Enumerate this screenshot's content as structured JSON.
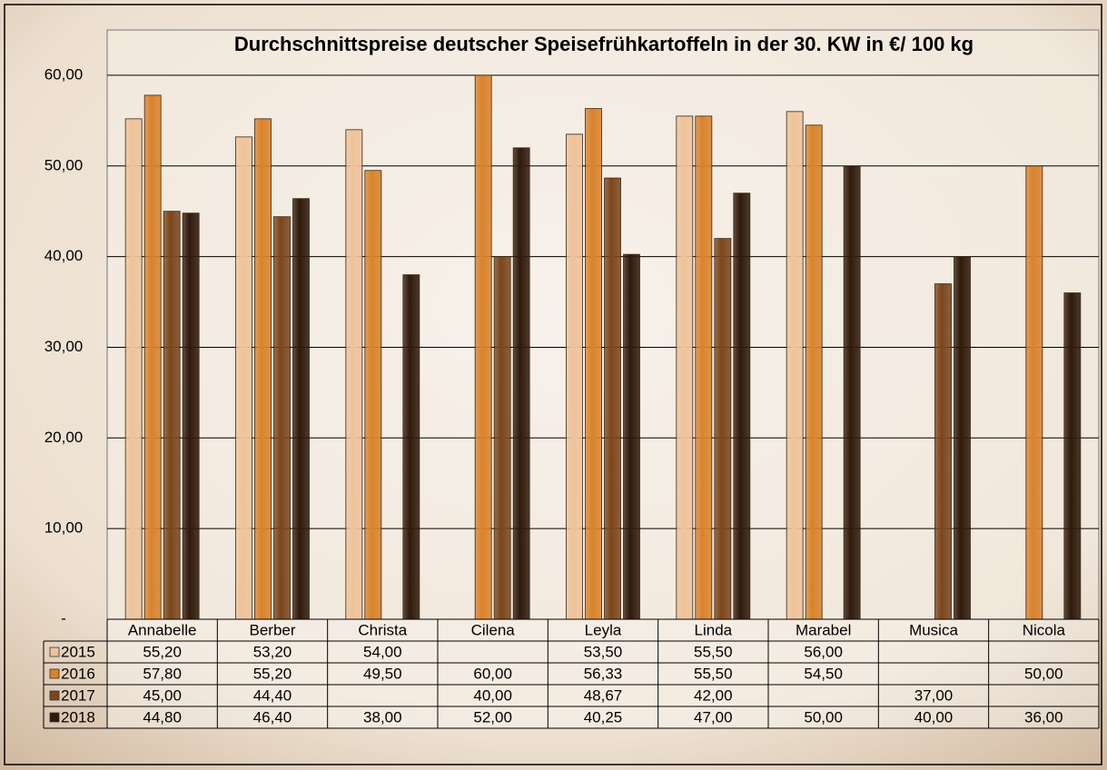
{
  "chart_data": {
    "type": "bar",
    "title": "Durchschnittspreise deutscher Speisefrühkartoffeln in der 30. KW in €/ 100 kg",
    "categories": [
      "Annabelle",
      "Berber",
      "Christa",
      "Cilena",
      "Leyla",
      "Linda",
      "Marabel",
      "Musica",
      "Nicola"
    ],
    "series": [
      {
        "name": "2015",
        "color": "#eec39a",
        "values": [
          55.2,
          53.2,
          54.0,
          null,
          53.5,
          55.5,
          56.0,
          null,
          null
        ],
        "value_labels": [
          "55,20",
          "53,20",
          "54,00",
          null,
          "53,50",
          "55,50",
          "56,00",
          null,
          null
        ]
      },
      {
        "name": "2016",
        "color": "#d9832c",
        "values": [
          57.8,
          55.2,
          49.5,
          60.0,
          56.33,
          55.5,
          54.5,
          null,
          50.0
        ],
        "value_labels": [
          "57,80",
          "55,20",
          "49,50",
          "60,00",
          "56,33",
          "55,50",
          "54,50",
          null,
          "50,00"
        ]
      },
      {
        "name": "2017",
        "color": "#7b461c",
        "values": [
          45.0,
          44.4,
          null,
          40.0,
          48.67,
          42.0,
          null,
          37.0,
          null
        ],
        "value_labels": [
          "45,00",
          "44,40",
          null,
          "40,00",
          "48,67",
          "42,00",
          null,
          "37,00",
          null
        ]
      },
      {
        "name": "2018",
        "color": "#2f1a0b",
        "values": [
          44.8,
          46.4,
          38.0,
          52.0,
          40.25,
          47.0,
          50.0,
          40.0,
          36.0
        ],
        "value_labels": [
          "44,80",
          "46,40",
          "38,00",
          "52,00",
          "40,25",
          "47,00",
          "50,00",
          "40,00",
          "36,00"
        ]
      }
    ],
    "ylim": [
      0,
      65
    ],
    "yticks": [
      {
        "value": 0,
        "label": "-"
      },
      {
        "value": 10,
        "label": "10,00"
      },
      {
        "value": 20,
        "label": "20,00"
      },
      {
        "value": 30,
        "label": "30,00"
      },
      {
        "value": 40,
        "label": "40,00"
      },
      {
        "value": 50,
        "label": "50,00"
      },
      {
        "value": 60,
        "label": "60,00"
      }
    ],
    "grid": true
  }
}
